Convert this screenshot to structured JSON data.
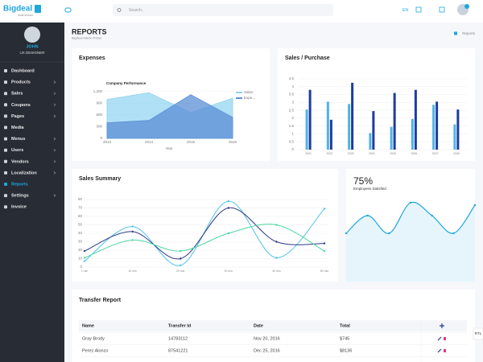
{
  "header": {
    "logo": "Bigdeal",
    "tagline": "multi vendor",
    "search_placeholder": "Search..",
    "language": "EN"
  },
  "sidebar": {
    "user_name": "JOHN",
    "user_role": "UX DESIGNER",
    "menu": [
      "Dashboard",
      "Products",
      "Sales",
      "Coupons",
      "Pages",
      "Media",
      "Menus",
      "Users",
      "Vendors",
      "Localization",
      "Reports",
      "Settings",
      "Invoice"
    ]
  },
  "page": {
    "title": "REPORTS",
    "subtitle": "Bigdeal Admin Panel",
    "breadcrumb": "Reports"
  },
  "chart_data": [
    {
      "type": "area",
      "card_title": "Expenses",
      "title": "Company Performance",
      "xlabel": "Year",
      "categories": [
        "2013",
        "2014",
        "2015",
        "2016"
      ],
      "ylim": [
        0,
        1300
      ],
      "yticks": [
        0,
        300,
        600,
        900,
        {
          "value": 1200,
          "label": "1,200"
        }
      ],
      "grid": true,
      "series": [
        {
          "name": "Sales",
          "color": "#8fd3f1",
          "values": [
            1000,
            1170,
            660,
            1030
          ]
        },
        {
          "name": "Expe…",
          "color": "#5b8fd6",
          "values": [
            400,
            460,
            1120,
            540
          ]
        }
      ]
    },
    {
      "type": "bar",
      "card_title": "Sales / Purchase",
      "categories": [
        "2001",
        "2002",
        "2003",
        "2004",
        "2005",
        "2006",
        "2007",
        "2008"
      ],
      "ylim": [
        0,
        4.5
      ],
      "yticks": [
        0,
        0.5,
        1,
        1.5,
        2,
        2.5,
        3,
        3.5,
        4,
        4.5
      ],
      "grid": true,
      "series": [
        {
          "color": "#4fb3e8",
          "values": [
            2.55,
            3.05,
            2.9,
            1.05,
            1.45,
            1.95,
            2.85,
            1.6
          ]
        },
        {
          "color": "#1f3c9e",
          "values": [
            3.8,
            1.9,
            4.25,
            2.45,
            3.6,
            3.8,
            3.05,
            2.55
          ]
        }
      ]
    },
    {
      "type": "line",
      "card_title": "Sales Summary",
      "categories": [
        "1 min",
        "10 min",
        "20 min",
        "30 min",
        "40 min",
        "50 min"
      ],
      "ylim": [
        0,
        80
      ],
      "yticks": [
        0,
        10,
        20,
        30,
        40,
        50,
        60,
        70,
        80
      ],
      "grid": true,
      "series": [
        {
          "color": "#4dc3ec",
          "values": [
            7,
            48,
            2,
            78,
            11,
            69
          ]
        },
        {
          "color": "#2e3a87",
          "values": [
            19,
            42,
            10,
            70,
            30,
            28
          ]
        },
        {
          "color": "#4fd6a0",
          "values": [
            11,
            32,
            19,
            40,
            50,
            19
          ]
        }
      ]
    },
    {
      "type": "wave",
      "title": "75%",
      "subtitle": "Employees Satisfied",
      "ylim": [
        0,
        60
      ],
      "color": "#1ea7dc",
      "values": [
        10,
        32,
        10,
        48,
        32,
        10,
        45
      ]
    }
  ],
  "table": {
    "title": "Transfer Report",
    "columns": [
      "Name",
      "Transfer Id",
      "Date",
      "Total"
    ],
    "rows": [
      [
        "Gray Brody",
        "14783112",
        "Nov 20, 2016",
        "$745"
      ],
      [
        "Perez Alonzo",
        "87541221",
        "Dec 25, 2016",
        "$8136"
      ]
    ]
  },
  "rtl_label": "RTL"
}
